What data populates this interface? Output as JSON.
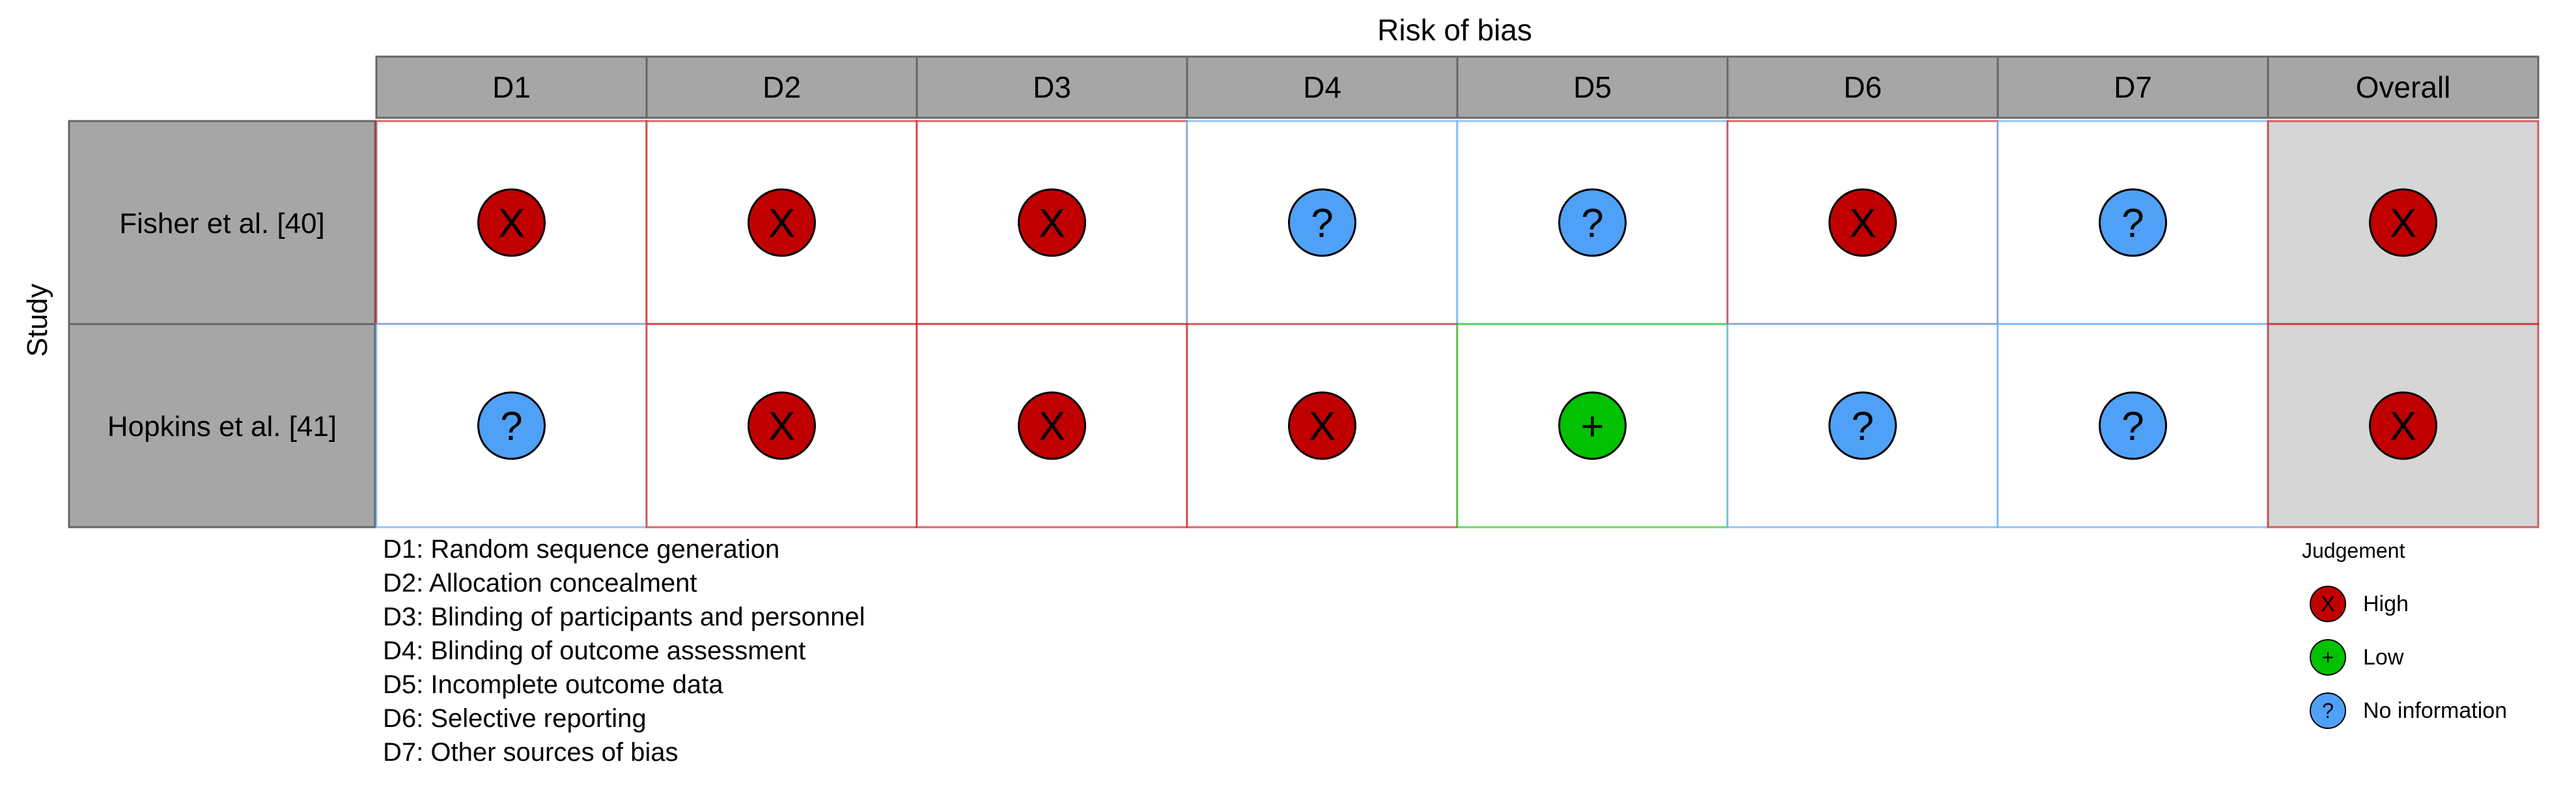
{
  "chart_data": {
    "type": "table",
    "title": "Risk of bias",
    "row_axis_label": "Study",
    "domains": [
      "D1",
      "D2",
      "D3",
      "D4",
      "D5",
      "D6",
      "D7",
      "Overall"
    ],
    "studies": [
      {
        "name": "Fisher et al. [40]",
        "judgements": [
          "high",
          "high",
          "high",
          "noinfo",
          "noinfo",
          "high",
          "noinfo",
          "high"
        ]
      },
      {
        "name": "Hopkins et al. [41]",
        "judgements": [
          "noinfo",
          "high",
          "high",
          "high",
          "low",
          "noinfo",
          "noinfo",
          "high"
        ]
      }
    ],
    "domain_definitions": [
      "D1: Random sequence generation",
      "D2: Allocation concealment",
      "D3: Blinding of participants and personnel",
      "D4: Blinding of outcome assessment",
      "D5: Incomplete outcome data",
      "D6: Selective reporting",
      "D7: Other sources of bias"
    ],
    "judgement_legend": {
      "title": "Judgement",
      "items": [
        {
          "key": "high",
          "label": "High",
          "symbol": "X",
          "color": "#C00000"
        },
        {
          "key": "low",
          "label": "Low",
          "symbol": "+",
          "color": "#02C100"
        },
        {
          "key": "noinfo",
          "label": "No information",
          "symbol": "?",
          "color": "#4EA1F7"
        }
      ]
    }
  }
}
